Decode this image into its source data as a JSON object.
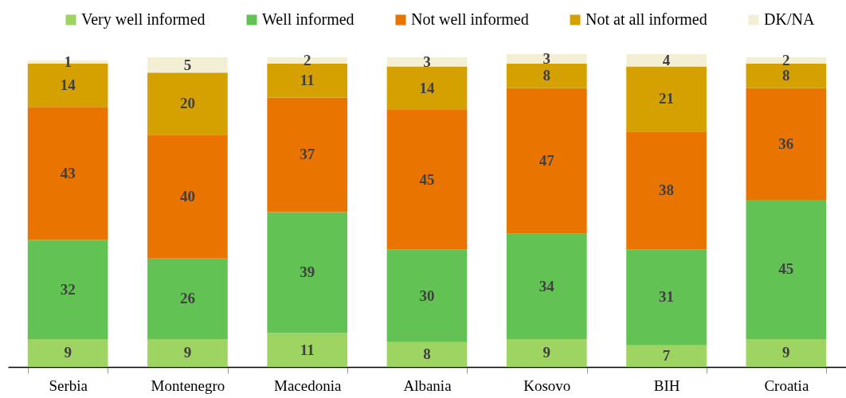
{
  "chart_data": {
    "type": "bar",
    "stacked": true,
    "data_labels": true,
    "legend": "top",
    "categories": [
      "Serbia",
      "Montenegro",
      "Macedonia",
      "Albania",
      "Kosovo",
      "BIH",
      "Croatia"
    ],
    "series": [
      {
        "name": "Very well informed",
        "color": "#9ed462",
        "values": [
          9,
          9,
          11,
          8,
          9,
          7,
          9
        ]
      },
      {
        "name": "Well informed",
        "color": "#62c354",
        "values": [
          32,
          26,
          39,
          30,
          34,
          31,
          45
        ]
      },
      {
        "name": "Not well informed",
        "color": "#ea7400",
        "values": [
          43,
          40,
          37,
          45,
          47,
          38,
          36
        ]
      },
      {
        "name": "Not at all informed",
        "color": "#d4a100",
        "values": [
          14,
          20,
          11,
          14,
          8,
          21,
          8
        ]
      },
      {
        "name": "DK/NA",
        "color": "#f3efd5",
        "values": [
          1,
          5,
          2,
          3,
          3,
          4,
          2
        ]
      }
    ]
  }
}
